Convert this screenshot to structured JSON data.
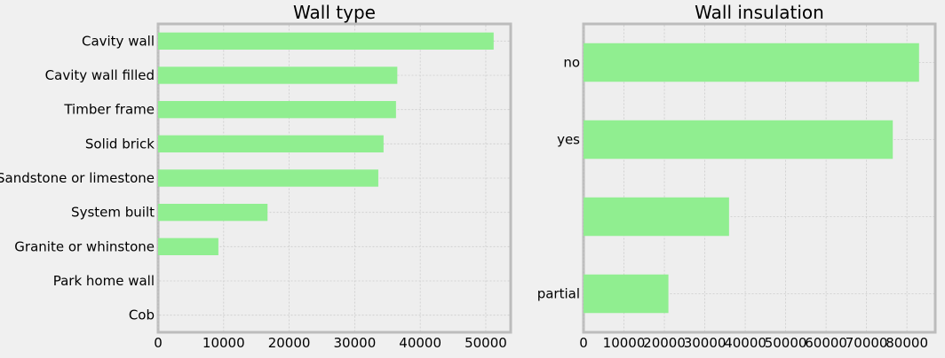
{
  "chart_data": [
    {
      "type": "bar",
      "orientation": "horizontal",
      "title": "Wall type",
      "xlabel": "",
      "ylabel": "",
      "categories": [
        "Cavity wall",
        "Cavity wall filled",
        "Timber frame",
        "Solid brick",
        "Sandstone or limestone",
        "System built",
        "Granite or whinstone",
        "Park home wall",
        "Cob"
      ],
      "values": [
        51200,
        36500,
        36300,
        34400,
        33600,
        16700,
        9200,
        0,
        0
      ],
      "xlim": [
        0,
        53800
      ],
      "xticks": [
        0,
        10000,
        20000,
        30000,
        40000,
        50000
      ],
      "grid": true,
      "bar_color": "#90ee90"
    },
    {
      "type": "bar",
      "orientation": "horizontal",
      "title": "Wall insulation",
      "xlabel": "",
      "ylabel": "",
      "categories": [
        "no",
        "yes",
        "",
        "partial"
      ],
      "values": [
        83000,
        76500,
        36000,
        21000
      ],
      "xlim": [
        0,
        87000
      ],
      "xticks": [
        0,
        10000,
        20000,
        30000,
        40000,
        50000,
        60000,
        70000,
        80000
      ],
      "grid": true,
      "bar_color": "#90ee90"
    }
  ]
}
